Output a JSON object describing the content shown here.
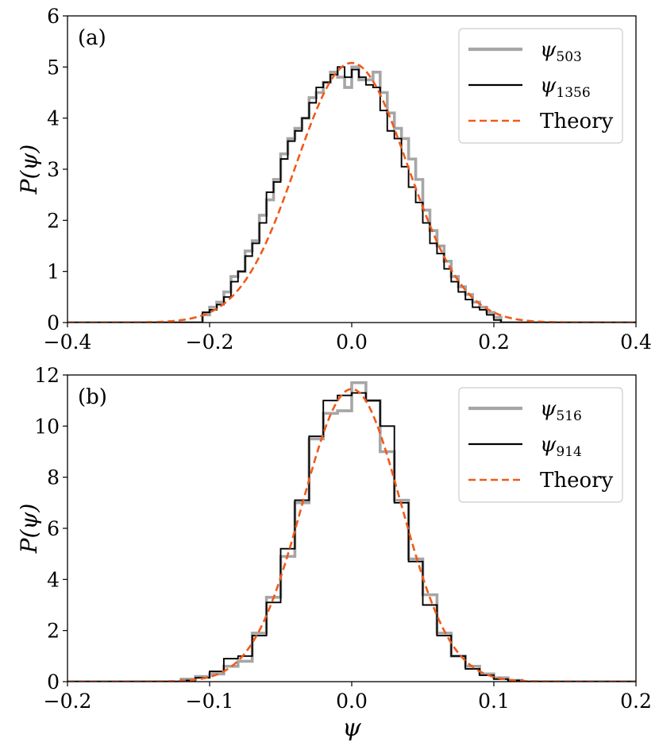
{
  "chart_data": [
    {
      "type": "histogram",
      "panel_label": "(a)",
      "ylabel": "P(ψ)",
      "xlabel": "",
      "xlim": [
        -0.4,
        0.4
      ],
      "ylim": [
        0,
        6
      ],
      "xticks": [
        -0.4,
        -0.2,
        0.0,
        0.2,
        0.4
      ],
      "xtick_labels": [
        "−0.4",
        "−0.2",
        "0.0",
        "0.2",
        "0.4"
      ],
      "yticks": [
        0,
        1,
        2,
        3,
        4,
        5,
        6
      ],
      "ytick_labels": [
        "0",
        "1",
        "2",
        "3",
        "4",
        "5",
        "6"
      ],
      "legend": [
        {
          "symbol": "ψ",
          "sub": "503",
          "color": "#a6a6a6",
          "style": "solid-thick"
        },
        {
          "symbol": "ψ",
          "sub": "1356",
          "color": "#000000",
          "style": "solid"
        },
        {
          "symbol": "Theory",
          "sub": "",
          "color": "#f05a1a",
          "style": "dashed"
        }
      ],
      "series": [
        {
          "name": "ψ_503",
          "color": "#a6a6a6",
          "bin_edges": [
            -0.21,
            -0.2,
            -0.19,
            -0.18,
            -0.17,
            -0.16,
            -0.15,
            -0.14,
            -0.13,
            -0.12,
            -0.11,
            -0.1,
            -0.09,
            -0.08,
            -0.07,
            -0.06,
            -0.05,
            -0.04,
            -0.03,
            -0.02,
            -0.01,
            0.0,
            0.01,
            0.02,
            0.03,
            0.04,
            0.05,
            0.06,
            0.07,
            0.08,
            0.09,
            0.1,
            0.11,
            0.12,
            0.13,
            0.14,
            0.15,
            0.16,
            0.17,
            0.18,
            0.19,
            0.2,
            0.21
          ],
          "values": [
            0.15,
            0.3,
            0.4,
            0.6,
            0.9,
            1.0,
            1.4,
            1.6,
            2.1,
            2.4,
            2.8,
            3.3,
            3.6,
            3.8,
            4.0,
            4.4,
            4.5,
            4.7,
            4.9,
            4.8,
            4.6,
            5.0,
            4.75,
            4.75,
            4.9,
            4.5,
            4.1,
            3.8,
            3.6,
            3.2,
            2.8,
            2.2,
            1.8,
            1.5,
            1.2,
            0.9,
            0.7,
            0.55,
            0.4,
            0.3,
            0.2,
            0.1
          ]
        },
        {
          "name": "ψ_1356",
          "color": "#000000",
          "bin_edges": [
            -0.21,
            -0.2,
            -0.19,
            -0.18,
            -0.17,
            -0.16,
            -0.15,
            -0.14,
            -0.13,
            -0.12,
            -0.11,
            -0.1,
            -0.09,
            -0.08,
            -0.07,
            -0.06,
            -0.05,
            -0.04,
            -0.03,
            -0.02,
            -0.01,
            0.0,
            0.01,
            0.02,
            0.03,
            0.04,
            0.05,
            0.06,
            0.07,
            0.08,
            0.09,
            0.1,
            0.11,
            0.12,
            0.13,
            0.14,
            0.15,
            0.16,
            0.17,
            0.18,
            0.19,
            0.2,
            0.21
          ],
          "values": [
            0.2,
            0.25,
            0.35,
            0.5,
            0.8,
            1.0,
            1.3,
            1.55,
            1.95,
            2.55,
            2.75,
            3.2,
            3.55,
            3.75,
            4.0,
            4.3,
            4.6,
            4.7,
            4.85,
            5.0,
            4.8,
            4.95,
            4.8,
            4.65,
            4.6,
            4.15,
            3.75,
            3.6,
            3.05,
            2.65,
            2.35,
            1.95,
            1.55,
            1.35,
            1.05,
            0.8,
            0.6,
            0.45,
            0.3,
            0.25,
            0.15,
            0.05
          ]
        },
        {
          "name": "Theory",
          "color": "#f05a1a",
          "kind": "gaussian",
          "mean": 0.0,
          "peak": 5.08,
          "sigma": 0.0785
        }
      ]
    },
    {
      "type": "histogram",
      "panel_label": "(b)",
      "ylabel": "P(ψ)",
      "xlabel": "ψ",
      "xlim": [
        -0.2,
        0.2
      ],
      "ylim": [
        0,
        12
      ],
      "xticks": [
        -0.2,
        -0.1,
        0.0,
        0.1,
        0.2
      ],
      "xtick_labels": [
        "−0.2",
        "−0.1",
        "0.0",
        "0.1",
        "0.2"
      ],
      "yticks": [
        0,
        2,
        4,
        6,
        8,
        10,
        12
      ],
      "ytick_labels": [
        "0",
        "2",
        "4",
        "6",
        "8",
        "10",
        "12"
      ],
      "legend": [
        {
          "symbol": "ψ",
          "sub": "516",
          "color": "#a6a6a6",
          "style": "solid-thick"
        },
        {
          "symbol": "ψ",
          "sub": "914",
          "color": "#000000",
          "style": "solid"
        },
        {
          "symbol": "Theory",
          "sub": "",
          "color": "#f05a1a",
          "style": "dashed"
        }
      ],
      "series": [
        {
          "name": "ψ_516",
          "color": "#a6a6a6",
          "bin_edges": [
            -0.12,
            -0.11,
            -0.1,
            -0.09,
            -0.08,
            -0.07,
            -0.06,
            -0.05,
            -0.04,
            -0.03,
            -0.02,
            -0.01,
            0.0,
            0.01,
            0.02,
            0.03,
            0.04,
            0.05,
            0.06,
            0.07,
            0.08,
            0.09,
            0.1,
            0.11,
            0.12
          ],
          "values": [
            0.1,
            0.2,
            0.3,
            0.6,
            0.8,
            1.9,
            3.3,
            4.9,
            7.0,
            9.5,
            10.5,
            10.6,
            11.7,
            11.0,
            9.0,
            7.1,
            4.8,
            3.4,
            1.9,
            1.0,
            0.6,
            0.3,
            0.15,
            0.05
          ]
        },
        {
          "name": "ψ_914",
          "color": "#000000",
          "bin_edges": [
            -0.12,
            -0.11,
            -0.1,
            -0.09,
            -0.08,
            -0.07,
            -0.06,
            -0.05,
            -0.04,
            -0.03,
            -0.02,
            -0.01,
            0.0,
            0.01,
            0.02,
            0.03,
            0.04,
            0.05,
            0.06,
            0.07,
            0.08,
            0.09,
            0.1,
            0.11,
            0.12
          ],
          "values": [
            0.05,
            0.15,
            0.4,
            0.9,
            1.0,
            1.8,
            3.1,
            5.2,
            7.1,
            9.6,
            11.0,
            11.2,
            11.3,
            11.0,
            10.0,
            7.0,
            4.7,
            3.0,
            1.8,
            1.0,
            0.5,
            0.25,
            0.1,
            0.05
          ]
        },
        {
          "name": "Theory",
          "color": "#f05a1a",
          "kind": "gaussian",
          "mean": 0.0,
          "peak": 11.45,
          "sigma": 0.0348
        }
      ]
    }
  ]
}
